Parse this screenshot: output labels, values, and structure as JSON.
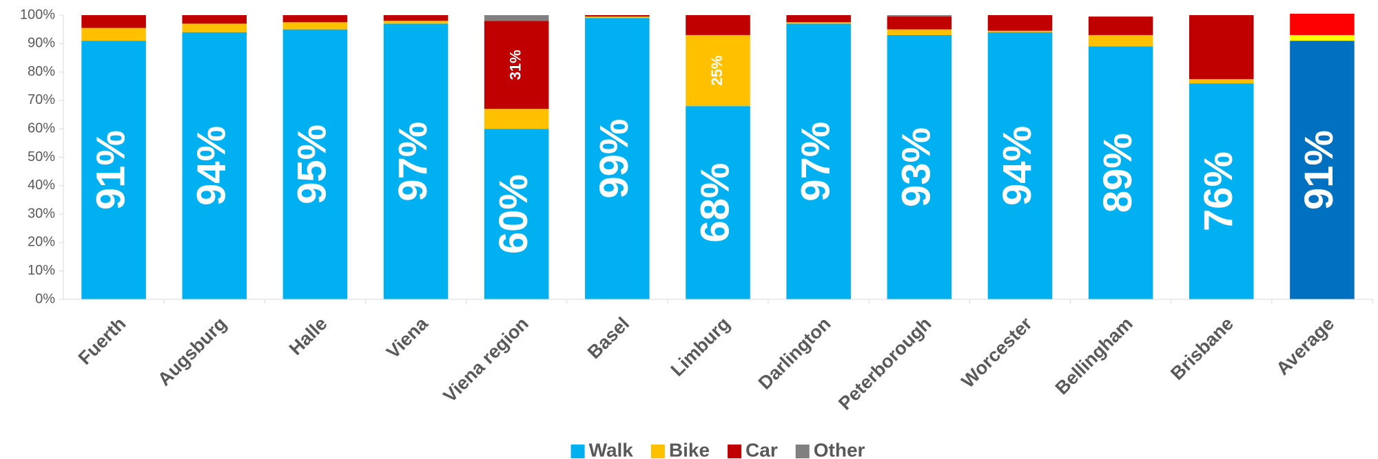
{
  "chart_data": {
    "type": "stacked_bar",
    "categories": [
      "Fuerth",
      "Augsburg",
      "Halle",
      "Viena",
      "Viena region",
      "Basel",
      "Limburg",
      "Darlington",
      "Peterborough",
      "Worcester",
      "Bellingham",
      "Brisbane",
      "Average"
    ],
    "series": [
      {
        "name": "Walk",
        "color": "#00b0f0",
        "highlight_color": "#0070c0",
        "values": [
          91,
          94,
          95,
          97,
          60,
          99,
          68,
          97,
          93,
          94,
          89,
          76,
          91
        ],
        "value_labels": [
          "91%",
          "94%",
          "95%",
          "97%",
          "60%",
          "99%",
          "68%",
          "97%",
          "93%",
          "94%",
          "89%",
          "76%",
          "91%"
        ]
      },
      {
        "name": "Bike",
        "color": "#ffc000",
        "highlight_color": "#ffff00",
        "values": [
          4.5,
          3,
          2.5,
          1,
          7,
          0.5,
          25,
          0.5,
          2,
          0.5,
          4,
          1.5,
          2
        ],
        "value_labels": [
          null,
          null,
          null,
          null,
          null,
          null,
          "25%",
          null,
          null,
          null,
          null,
          null,
          null
        ]
      },
      {
        "name": "Car",
        "color": "#c00000",
        "highlight_color": "#ff0000",
        "values": [
          4.5,
          3,
          2.5,
          2,
          31,
          0.5,
          7,
          2.5,
          4.5,
          5.5,
          6.5,
          22.5,
          7.5
        ],
        "value_labels": [
          null,
          null,
          null,
          null,
          "31%",
          null,
          null,
          null,
          null,
          null,
          null,
          null,
          null
        ]
      },
      {
        "name": "Other",
        "color": "#808080",
        "highlight_color": "#808080",
        "values": [
          0,
          0,
          0,
          0,
          2,
          0,
          0,
          0,
          0.5,
          0,
          0,
          0,
          0
        ]
      }
    ],
    "highlight_category": "Average",
    "ylim": [
      0,
      100
    ],
    "yticks": [
      {
        "value": 0,
        "label": "0%"
      },
      {
        "value": 10,
        "label": "10%"
      },
      {
        "value": 20,
        "label": "20%"
      },
      {
        "value": 30,
        "label": "30%"
      },
      {
        "value": 40,
        "label": "40%"
      },
      {
        "value": 50,
        "label": "50%"
      },
      {
        "value": 60,
        "label": "60%"
      },
      {
        "value": 70,
        "label": "70%"
      },
      {
        "value": 80,
        "label": "80%"
      },
      {
        "value": 90,
        "label": "90%"
      },
      {
        "value": 100,
        "label": "100%"
      }
    ],
    "grid": false,
    "legend": "bottom"
  }
}
